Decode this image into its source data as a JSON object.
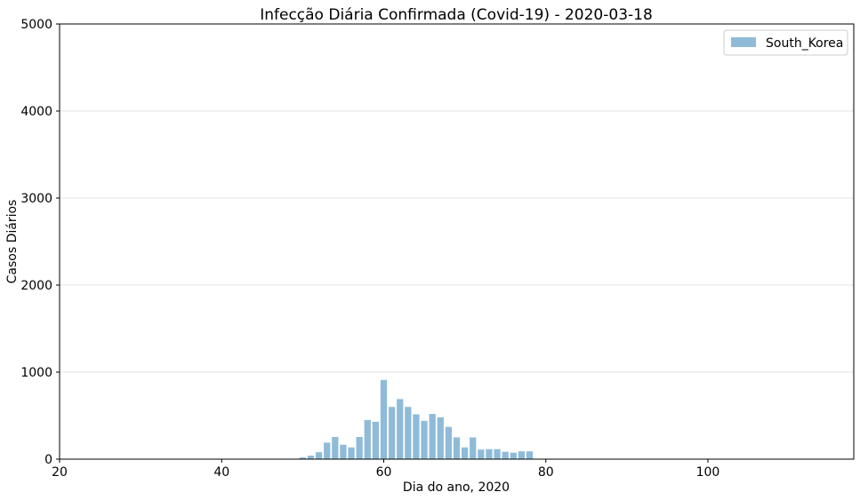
{
  "chart_data": {
    "type": "bar",
    "title": "Infecção Diária Confirmada (Covid-19) - 2020-03-18",
    "xlabel": "Dia do ano, 2020",
    "ylabel": "Casos Diários",
    "xlim": [
      20,
      118
    ],
    "ylim": [
      0,
      5000
    ],
    "xticks": [
      20,
      40,
      60,
      80,
      100
    ],
    "yticks": [
      0,
      1000,
      2000,
      3000,
      4000,
      5000
    ],
    "grid": "horizontal",
    "legend_position": "top-right",
    "series": [
      {
        "name": "South_Korea",
        "color": "#8fbbd9",
        "x": [
          32,
          37,
          50,
          51,
          52,
          53,
          54,
          55,
          56,
          57,
          58,
          59,
          60,
          61,
          62,
          63,
          64,
          65,
          66,
          67,
          68,
          69,
          70,
          71,
          72,
          73,
          74,
          75,
          76,
          77,
          78
        ],
        "values": [
          5,
          5,
          20,
          40,
          80,
          190,
          255,
          165,
          135,
          255,
          450,
          430,
          910,
          600,
          690,
          600,
          515,
          440,
          520,
          480,
          370,
          250,
          135,
          250,
          110,
          115,
          115,
          85,
          75,
          90,
          90
        ]
      }
    ]
  }
}
